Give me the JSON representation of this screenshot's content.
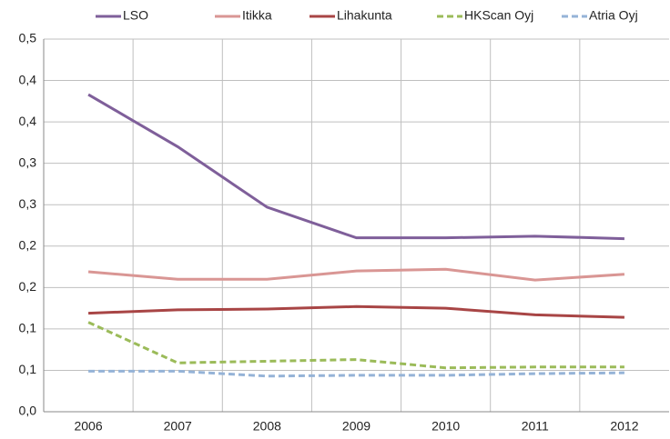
{
  "chart_data": {
    "type": "line",
    "categories": [
      "2006",
      "2007",
      "2008",
      "2009",
      "2010",
      "2011",
      "2012"
    ],
    "series": [
      {
        "name": "LSO",
        "color": "#7f5f9a",
        "dashed": false,
        "values": [
          0.383,
          0.32,
          0.247,
          0.21,
          0.21,
          0.212,
          0.209
        ]
      },
      {
        "name": "Itikka",
        "color": "#d99694",
        "dashed": false,
        "values": [
          0.169,
          0.16,
          0.16,
          0.17,
          0.172,
          0.159,
          0.166
        ]
      },
      {
        "name": "Lihakunta",
        "color": "#a84545",
        "dashed": false,
        "values": [
          0.119,
          0.123,
          0.124,
          0.127,
          0.125,
          0.117,
          0.114
        ]
      },
      {
        "name": "HKScan Oyj",
        "color": "#9bbb59",
        "dashed": true,
        "values": [
          0.108,
          0.059,
          0.061,
          0.063,
          0.053,
          0.054,
          0.054
        ]
      },
      {
        "name": "Atria Oyj",
        "color": "#95b3d7",
        "dashed": true,
        "values": [
          0.049,
          0.049,
          0.043,
          0.044,
          0.044,
          0.046,
          0.047
        ]
      }
    ],
    "ylim": [
      0,
      0.45
    ],
    "yticks": [
      {
        "value": 0,
        "label": "0,0"
      },
      {
        "value": 0.05,
        "label": "0,1"
      },
      {
        "value": 0.1,
        "label": "0,1"
      },
      {
        "value": 0.15,
        "label": "0,2"
      },
      {
        "value": 0.2,
        "label": "0,2"
      },
      {
        "value": 0.25,
        "label": "0,3"
      },
      {
        "value": 0.3,
        "label": "0,3"
      },
      {
        "value": 0.35,
        "label": "0,4"
      },
      {
        "value": 0.4,
        "label": "0,4"
      },
      {
        "value": 0.45,
        "label": "0,5"
      }
    ],
    "grid": true,
    "legend": "top"
  }
}
